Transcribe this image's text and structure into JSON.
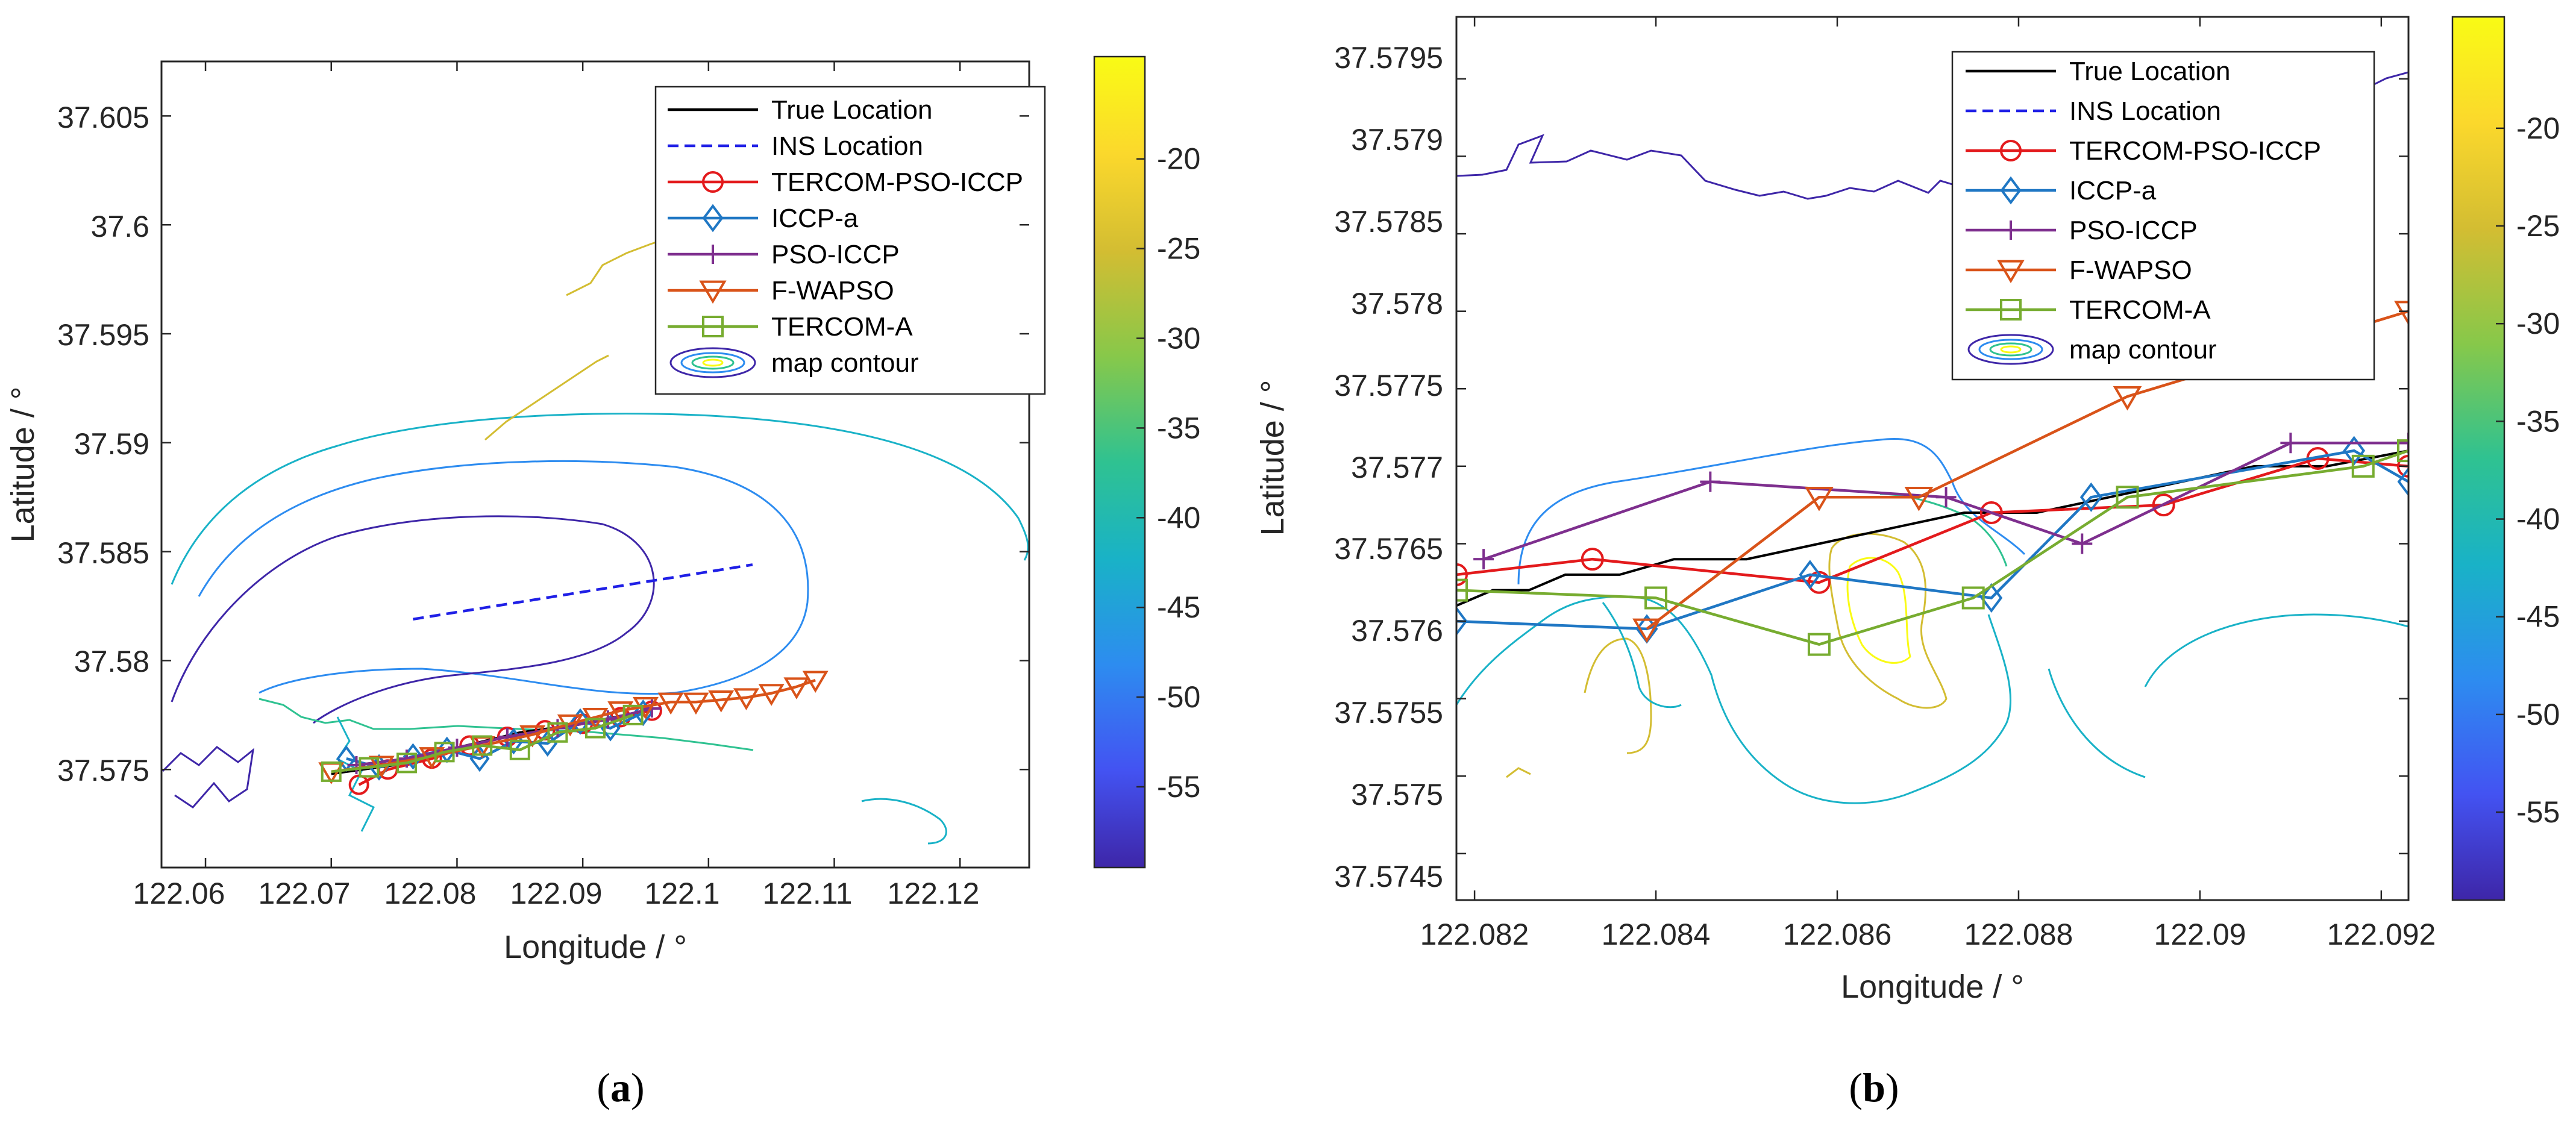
{
  "colors": {
    "true_location": "#000000",
    "ins_location": "#1f1fe6",
    "tercom_pso_iccp": "#e31a1c",
    "iccp_a": "#1f77c4",
    "pso_iccp": "#7e2f8e",
    "f_wapso": "#d95319",
    "tercom_a": "#77ac30",
    "colormap": [
      "#3e26a8",
      "#4353f2",
      "#2d8cf0",
      "#19b2c7",
      "#2fc291",
      "#87c84a",
      "#d3bd32",
      "#fbd82c",
      "#f9fb15"
    ]
  },
  "chart_data": [
    {
      "panel": "a",
      "caption_label": "a",
      "type": "line",
      "xlabel": "Longitude / °",
      "ylabel": "Latitude / °",
      "xlim": [
        122.0565,
        122.1255
      ],
      "ylim": [
        37.5705,
        37.6075
      ],
      "xticks": [
        122.06,
        122.07,
        122.08,
        122.09,
        122.1,
        122.11,
        122.12
      ],
      "xtick_labels": [
        "122.06",
        "122.07",
        "122.08",
        "122.09",
        "122.1",
        "122.11",
        "122.12"
      ],
      "yticks": [
        37.575,
        37.58,
        37.585,
        37.59,
        37.595,
        37.6,
        37.605
      ],
      "ytick_labels": [
        "37.575",
        "37.58",
        "37.585",
        "37.59",
        "37.595",
        "37.6",
        "37.605"
      ],
      "colorbar": {
        "range": [
          -59.5,
          -14.3
        ],
        "ticks": [
          -55,
          -50,
          -45,
          -40,
          -35,
          -30,
          -25,
          -20
        ],
        "tick_labels": [
          "-55",
          "-50",
          "-45",
          "-40",
          "-35",
          "-30",
          "-25",
          "-20"
        ]
      },
      "legend": {
        "placement": "top-right",
        "entries": [
          "True Location",
          "INS Location",
          "TERCOM-PSO-ICCP",
          "ICCP-a",
          "PSO-ICCP",
          "F-WAPSO",
          "TERCOM-A",
          "map contour"
        ]
      },
      "series": [
        {
          "name": "True Location",
          "style": "solid",
          "marker": "none",
          "x": [
            122.07,
            122.075,
            122.08,
            122.085,
            122.09,
            122.095
          ],
          "y": [
            37.5748,
            37.5752,
            37.576,
            37.5767,
            37.5771,
            37.5777
          ]
        },
        {
          "name": "INS Location",
          "style": "dashed",
          "marker": "none",
          "x": [
            122.0765,
            122.1035
          ],
          "y": [
            37.5819,
            37.5844
          ]
        },
        {
          "name": "TERCOM-PSO-ICCP",
          "style": "solid",
          "marker": "circle",
          "x": [
            122.0722,
            122.0745,
            122.078,
            122.081,
            122.084,
            122.087,
            122.09,
            122.093,
            122.0955
          ],
          "y": [
            37.5743,
            37.575,
            37.5755,
            37.5761,
            37.5765,
            37.5768,
            37.5771,
            37.5774,
            37.5777
          ]
        },
        {
          "name": "ICCP-a",
          "style": "solid",
          "marker": "diamond",
          "x": [
            122.0712,
            122.0738,
            122.0765,
            122.0792,
            122.0818,
            122.0845,
            122.0872,
            122.0898,
            122.0922,
            122.0948
          ],
          "y": [
            37.5755,
            37.5751,
            37.5756,
            37.5759,
            37.5755,
            37.5763,
            37.5762,
            37.5772,
            37.5769,
            37.5776
          ]
        },
        {
          "name": "PSO-ICCP",
          "style": "solid",
          "marker": "plus",
          "x": [
            122.072,
            122.076,
            122.08,
            122.084,
            122.088,
            122.092,
            122.0955
          ],
          "y": [
            37.5752,
            37.5755,
            37.576,
            37.5765,
            37.5769,
            37.5773,
            37.5778
          ]
        },
        {
          "name": "F-WAPSO",
          "style": "solid",
          "marker": "triangle-down",
          "x": [
            122.07,
            122.074,
            122.078,
            122.082,
            122.086,
            122.089,
            122.091,
            122.093,
            122.095,
            122.097,
            122.099,
            122.101,
            122.103,
            122.105,
            122.107,
            122.1085
          ],
          "y": [
            37.5749,
            37.5752,
            37.5756,
            37.5761,
            37.5766,
            37.5771,
            37.5774,
            37.5777,
            37.5779,
            37.5781,
            37.5781,
            37.5782,
            37.5783,
            37.5785,
            37.5788,
            37.5791
          ]
        },
        {
          "name": "TERCOM-A",
          "style": "solid",
          "marker": "square",
          "x": [
            122.07,
            122.073,
            122.076,
            122.079,
            122.082,
            122.085,
            122.088,
            122.091,
            122.094
          ],
          "y": [
            37.5749,
            37.5751,
            37.5753,
            37.5758,
            37.5761,
            37.5759,
            37.5767,
            37.5769,
            37.5775
          ]
        }
      ]
    },
    {
      "panel": "b",
      "caption_label": "b",
      "type": "line",
      "xlabel": "Longitude / °",
      "ylabel": "Latitude / °",
      "xlim": [
        122.0818,
        122.0923
      ],
      "ylim": [
        37.5742,
        37.5799
      ],
      "xticks": [
        122.082,
        122.084,
        122.086,
        122.088,
        122.09,
        122.092
      ],
      "xtick_labels": [
        "122.082",
        "122.084",
        "122.086",
        "122.088",
        "122.09",
        "122.092"
      ],
      "yticks": [
        37.5745,
        37.575,
        37.5755,
        37.576,
        37.5765,
        37.577,
        37.5775,
        37.578,
        37.5785,
        37.579,
        37.5795
      ],
      "ytick_labels": [
        "37.5745",
        "37.575",
        "37.5755",
        "37.576",
        "37.5765",
        "37.577",
        "37.5775",
        "37.578",
        "37.5785",
        "37.579",
        "37.5795"
      ],
      "colorbar": {
        "range": [
          -59.5,
          -14.3
        ],
        "ticks": [
          -55,
          -50,
          -45,
          -40,
          -35,
          -30,
          -25,
          -20
        ],
        "tick_labels": [
          "-55",
          "-50",
          "-45",
          "-40",
          "-35",
          "-30",
          "-25",
          "-20"
        ]
      },
      "legend": {
        "placement": "top-right",
        "entries": [
          "True Location",
          "INS Location",
          "TERCOM-PSO-ICCP",
          "ICCP-a",
          "PSO-ICCP",
          "F-WAPSO",
          "TERCOM-A",
          "map contour"
        ]
      },
      "series": [
        {
          "name": "True Location",
          "style": "solid",
          "marker": "none",
          "x": [
            122.0818,
            122.0822,
            122.0826,
            122.083,
            122.0836,
            122.0842,
            122.085,
            122.0858,
            122.0866,
            122.0874,
            122.0882,
            122.089,
            122.0898,
            122.0906,
            122.0914,
            122.0923
          ],
          "y": [
            37.5761,
            37.5762,
            37.5762,
            37.5763,
            37.5763,
            37.5764,
            37.5764,
            37.5765,
            37.5766,
            37.5767,
            37.5767,
            37.5768,
            37.5769,
            37.577,
            37.577,
            37.5771
          ]
        },
        {
          "name": "TERCOM-PSO-ICCP",
          "style": "solid",
          "marker": "circle",
          "x": [
            122.0818,
            122.0833,
            122.0858,
            122.0877,
            122.0896,
            122.0913,
            122.0923
          ],
          "y": [
            37.5763,
            37.5764,
            37.57625,
            37.5767,
            37.57675,
            37.57705,
            37.577
          ]
        },
        {
          "name": "ICCP-a",
          "style": "solid",
          "marker": "diamond",
          "x": [
            122.0818,
            122.0839,
            122.0857,
            122.0877,
            122.0888,
            122.0917,
            122.0923
          ],
          "y": [
            37.576,
            37.57595,
            37.5763,
            37.57615,
            37.5768,
            37.5771,
            37.5769
          ]
        },
        {
          "name": "PSO-ICCP",
          "style": "solid",
          "marker": "plus",
          "x": [
            122.0821,
            122.0846,
            122.0872,
            122.0887,
            122.091,
            122.0923
          ],
          "y": [
            37.5764,
            37.5769,
            37.5768,
            37.5765,
            37.57715,
            37.57715
          ]
        },
        {
          "name": "F-WAPSO",
          "style": "solid",
          "marker": "triangle-down",
          "x": [
            122.0839,
            122.0858,
            122.0869,
            122.0892,
            122.0923
          ],
          "y": [
            37.57595,
            37.5768,
            37.5768,
            37.57745,
            37.578
          ]
        },
        {
          "name": "TERCOM-A",
          "style": "solid",
          "marker": "square",
          "x": [
            122.0818,
            122.084,
            122.0858,
            122.0875,
            122.0892,
            122.0918,
            122.0923
          ],
          "y": [
            37.5762,
            37.57615,
            37.57585,
            37.57615,
            37.5768,
            37.577,
            37.5771
          ]
        }
      ]
    }
  ]
}
